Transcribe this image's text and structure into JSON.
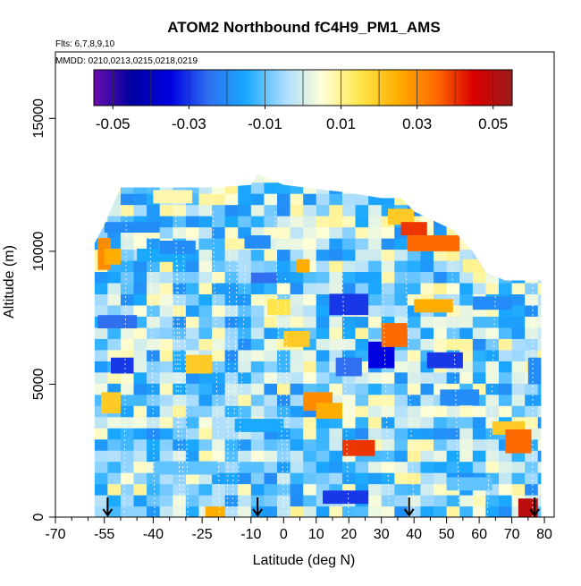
{
  "chart_data": {
    "type": "heatmap",
    "title": "ATOM2 Northbound fC4H9_PM1_AMS",
    "subtitle_flights": "Flts: 6,7,8,9,10",
    "subtitle_dates": "MMDD: 0210,0213,0215,0218,0219",
    "xlabel": "Latitude (deg N)",
    "ylabel": "Altitude (m)",
    "xlim": [
      -70,
      83
    ],
    "ylim": [
      0,
      17500
    ],
    "x_ticks": [
      -70,
      -55,
      -40,
      -25,
      -10,
      0,
      10,
      20,
      30,
      40,
      50,
      60,
      70,
      80
    ],
    "x_tick_labels": [
      "-70",
      "-55",
      "-40",
      "-25",
      "-10",
      "0",
      "10",
      "20",
      "30",
      "40",
      "50",
      "60",
      "70",
      "80"
    ],
    "x_minor_ticks": [
      -65,
      -60,
      -50,
      -45,
      -35,
      -30,
      -20,
      -15,
      -5,
      5,
      15,
      25,
      35,
      45,
      55,
      65,
      75
    ],
    "y_ticks": [
      0,
      5000,
      10000,
      15000
    ],
    "y_tick_labels": [
      "0",
      "5000",
      "10000",
      "15000"
    ],
    "colorbar": {
      "min": -0.055,
      "max": 0.055,
      "ticks": [
        -0.05,
        -0.03,
        -0.01,
        0.01,
        0.03,
        0.05
      ],
      "tick_labels": [
        "-0.05",
        "-0.03",
        "-0.01",
        "0.01",
        "0.03",
        "0.05"
      ],
      "stops": [
        "#6a0dad",
        "#0000a0",
        "#0000e0",
        "#2f6ff0",
        "#19a9ff",
        "#a8dcff",
        "#ffffd8",
        "#ffe54a",
        "#ffae00",
        "#ff6a00",
        "#d80000",
        "#9b1b1b"
      ]
    },
    "profile_markers_lat": [
      -54,
      -8,
      38.5,
      77
    ],
    "profile_marker_label": "↓",
    "data_extent_lat": [
      -58,
      79
    ],
    "data_top_alt": [
      [
        -58,
        10300
      ],
      [
        -55,
        11000
      ],
      [
        -50,
        12400
      ],
      [
        -40,
        12400
      ],
      [
        -20,
        12400
      ],
      [
        -10,
        12500
      ],
      [
        -8,
        12900
      ],
      [
        0,
        12500
      ],
      [
        20,
        12200
      ],
      [
        30,
        12000
      ],
      [
        36,
        12000
      ],
      [
        40,
        11500
      ],
      [
        52,
        10800
      ],
      [
        58,
        10000
      ],
      [
        62,
        9200
      ],
      [
        68,
        8900
      ],
      [
        79,
        8900
      ]
    ],
    "background_value": -0.005,
    "patches": [
      {
        "lat": [
          -57,
          -53
        ],
        "alt": [
          9300,
          10500
        ],
        "v": 0.03
      },
      {
        "lat": [
          -55,
          -50
        ],
        "alt": [
          9500,
          10100
        ],
        "v": 0.025
      },
      {
        "lat": [
          -57,
          -45
        ],
        "alt": [
          7100,
          7600
        ],
        "v": -0.025
      },
      {
        "lat": [
          -53,
          -46
        ],
        "alt": [
          5400,
          6000
        ],
        "v": -0.03
      },
      {
        "lat": [
          -56,
          -50
        ],
        "alt": [
          3900,
          4700
        ],
        "v": 0.02
      },
      {
        "lat": [
          -45,
          -30
        ],
        "alt": [
          9600,
          10100
        ],
        "v": -0.015
      },
      {
        "lat": [
          -38,
          -27
        ],
        "alt": [
          9900,
          10400
        ],
        "v": -0.02
      },
      {
        "lat": [
          -55,
          -38
        ],
        "alt": [
          10700,
          11100
        ],
        "v": -0.02
      },
      {
        "lat": [
          -40,
          -28
        ],
        "alt": [
          11800,
          12300
        ],
        "v": 0.008
      },
      {
        "lat": [
          -30,
          -22
        ],
        "alt": [
          5400,
          6100
        ],
        "v": 0.02
      },
      {
        "lat": [
          -24,
          -18
        ],
        "alt": [
          0,
          400
        ],
        "v": 0.025
      },
      {
        "lat": [
          -12,
          -4
        ],
        "alt": [
          10100,
          10600
        ],
        "v": -0.02
      },
      {
        "lat": [
          -5,
          2
        ],
        "alt": [
          7600,
          8200
        ],
        "v": 0.015
      },
      {
        "lat": [
          -10,
          -2
        ],
        "alt": [
          8800,
          9200
        ],
        "v": -0.025
      },
      {
        "lat": [
          4,
          8
        ],
        "alt": [
          9200,
          9700
        ],
        "v": 0.025
      },
      {
        "lat": [
          0,
          8
        ],
        "alt": [
          6400,
          7000
        ],
        "v": 0.02
      },
      {
        "lat": [
          6,
          15
        ],
        "alt": [
          4000,
          4700
        ],
        "v": 0.03
      },
      {
        "lat": [
          10,
          18
        ],
        "alt": [
          3700,
          4300
        ],
        "v": 0.025
      },
      {
        "lat": [
          14,
          26
        ],
        "alt": [
          7600,
          8400
        ],
        "v": -0.03
      },
      {
        "lat": [
          16,
          24
        ],
        "alt": [
          5300,
          6000
        ],
        "v": -0.025
      },
      {
        "lat": [
          18,
          28
        ],
        "alt": [
          2300,
          2900
        ],
        "v": 0.04
      },
      {
        "lat": [
          26,
          34
        ],
        "alt": [
          5600,
          6600
        ],
        "v": -0.035
      },
      {
        "lat": [
          30,
          38
        ],
        "alt": [
          6400,
          7300
        ],
        "v": 0.035
      },
      {
        "lat": [
          12,
          26
        ],
        "alt": [
          500,
          1000
        ],
        "v": -0.03
      },
      {
        "lat": [
          32,
          40
        ],
        "alt": [
          11000,
          11600
        ],
        "v": 0.02
      },
      {
        "lat": [
          36,
          44
        ],
        "alt": [
          10600,
          11100
        ],
        "v": 0.04
      },
      {
        "lat": [
          38,
          54
        ],
        "alt": [
          10000,
          10600
        ],
        "v": 0.035
      },
      {
        "lat": [
          36,
          48
        ],
        "alt": [
          12000,
          12400
        ],
        "v": 0.02
      },
      {
        "lat": [
          40,
          52
        ],
        "alt": [
          7700,
          8200
        ],
        "v": 0.025
      },
      {
        "lat": [
          44,
          55
        ],
        "alt": [
          5600,
          6200
        ],
        "v": -0.03
      },
      {
        "lat": [
          48,
          60
        ],
        "alt": [
          4200,
          4800
        ],
        "v": -0.02
      },
      {
        "lat": [
          58,
          70
        ],
        "alt": [
          7800,
          8300
        ],
        "v": -0.02
      },
      {
        "lat": [
          64,
          74
        ],
        "alt": [
          3100,
          3600
        ],
        "v": 0.02
      },
      {
        "lat": [
          68,
          76
        ],
        "alt": [
          2400,
          3300
        ],
        "v": 0.035
      },
      {
        "lat": [
          72,
          78
        ],
        "alt": [
          0,
          700
        ],
        "v": 0.05
      },
      {
        "lat": [
          75,
          79
        ],
        "alt": [
          5000,
          6000
        ],
        "v": -0.02
      },
      {
        "lat": [
          -40,
          -20
        ],
        "alt": [
          1600,
          2100
        ],
        "v": -0.01
      },
      {
        "lat": [
          -15,
          0
        ],
        "alt": [
          3200,
          3700
        ],
        "v": -0.015
      },
      {
        "lat": [
          50,
          64
        ],
        "alt": [
          1000,
          1500
        ],
        "v": -0.01
      },
      {
        "lat": [
          55,
          65
        ],
        "alt": [
          9200,
          9700
        ],
        "v": 0.01
      }
    ]
  }
}
